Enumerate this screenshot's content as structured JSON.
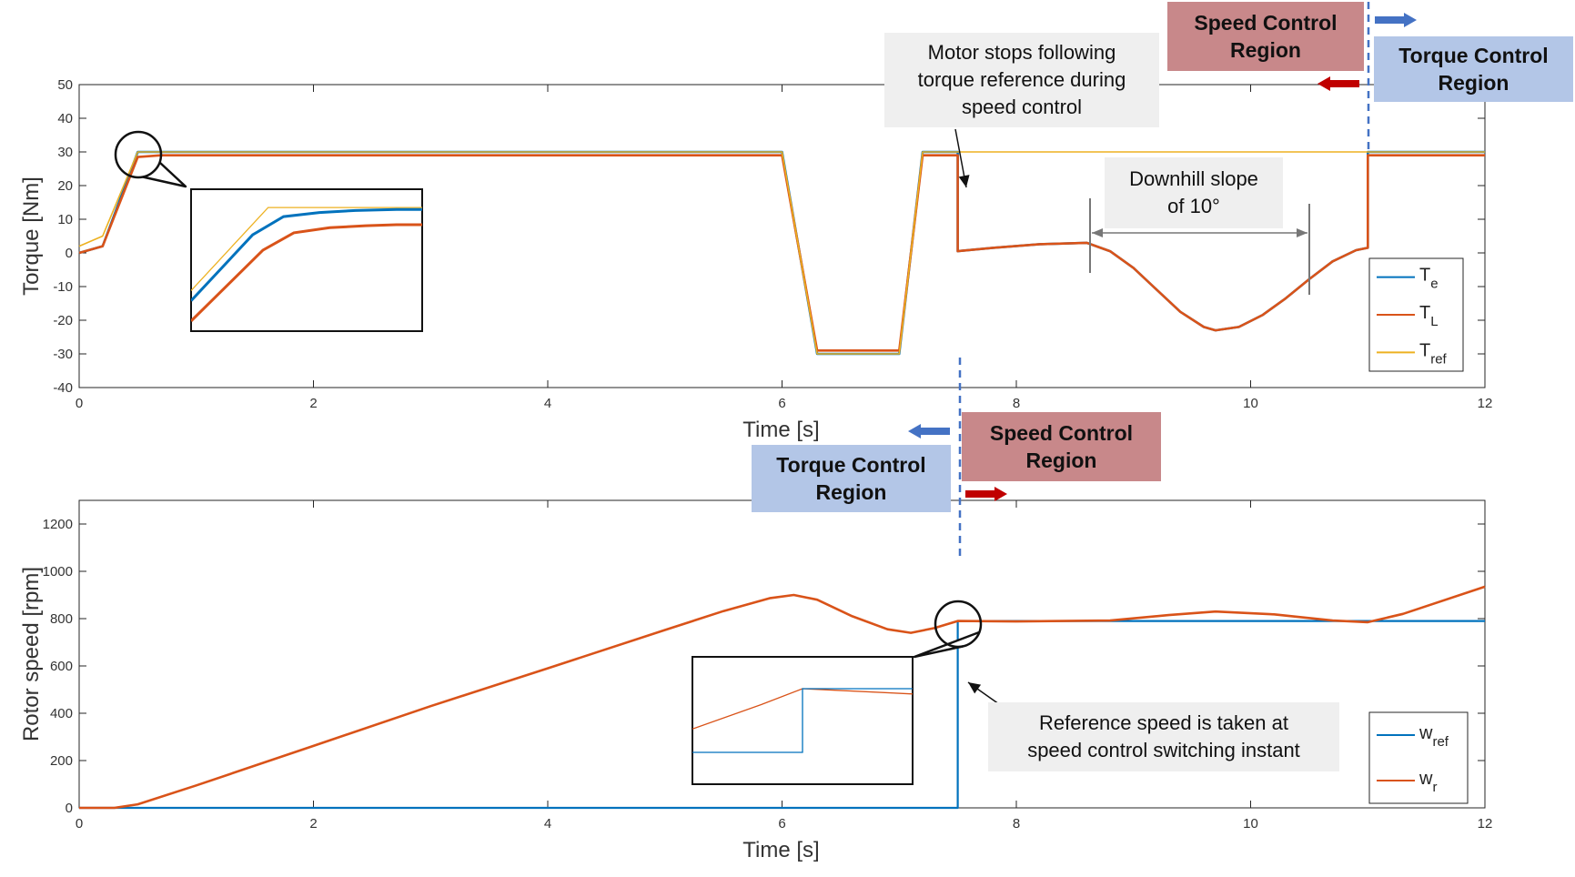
{
  "colors": {
    "te": "#0072BD",
    "tl": "#D95319",
    "tref": "#EDB120",
    "wref": "#0072BD",
    "wr": "#D95319",
    "speed_region": "#c8888a",
    "torque_region": "#b3c6e7",
    "note_bg": "#efefef",
    "switch_line": "#4472C4",
    "arrow_blue": "#4472C4",
    "arrow_red": "#C00000"
  },
  "annotations": {
    "top_speed_region": "Speed Control\nRegion",
    "top_torque_region": "Torque Control\nRegion",
    "motor_stops_note": "Motor stops following\ntorque reference during\nspeed control",
    "downhill_note": "Downhill slope\nof 10°",
    "bottom_speed_region": "Speed Control\nRegion",
    "bottom_torque_region": "Torque Control\nRegion",
    "reference_speed_note": "Reference speed is taken at\nspeed control switching instant"
  },
  "chart_data": [
    {
      "type": "line",
      "xlabel": "Time [s]",
      "ylabel": "Torque [Nm]",
      "xlim": [
        0,
        12
      ],
      "ylim": [
        -40,
        50
      ],
      "xticks": [
        0,
        2,
        4,
        6,
        8,
        10,
        12
      ],
      "yticks": [
        -40,
        -30,
        -20,
        -10,
        0,
        10,
        20,
        30,
        40,
        50
      ],
      "legend_position": "bottom-right",
      "series": [
        {
          "key": "te",
          "name": "T",
          "sub": "e",
          "x": [
            0,
            0.2,
            0.5,
            0.7,
            6.0,
            6.3,
            7.0,
            7.2,
            7.5,
            7.5,
            7.8,
            8.2,
            8.6,
            8.8,
            9.0,
            9.2,
            9.4,
            9.6,
            9.7,
            9.9,
            10.1,
            10.3,
            10.5,
            10.7,
            10.9,
            11.0,
            11.0,
            12.0
          ],
          "y": [
            0,
            2,
            30,
            30,
            30,
            -30,
            -30,
            30,
            30,
            0.5,
            1.5,
            2.6,
            3.0,
            0.5,
            -4.5,
            -11,
            -17.5,
            -22,
            -23,
            -22,
            -18.5,
            -13.5,
            -7.8,
            -2.5,
            0.8,
            1.5,
            30,
            30
          ]
        },
        {
          "key": "tl",
          "name": "T",
          "sub": "L",
          "x": [
            0,
            0.2,
            0.5,
            0.7,
            6.0,
            6.3,
            7.0,
            7.2,
            7.5,
            7.5,
            7.8,
            8.2,
            8.6,
            8.8,
            9.0,
            9.2,
            9.4,
            9.6,
            9.7,
            9.9,
            10.1,
            10.3,
            10.5,
            10.7,
            10.9,
            11.0,
            11.0,
            12.0
          ],
          "y": [
            0,
            2,
            28.5,
            29,
            29,
            -29,
            -29,
            29,
            29,
            0.5,
            1.5,
            2.6,
            3.0,
            0.5,
            -4.5,
            -11,
            -17.5,
            -22,
            -23,
            -22,
            -18.5,
            -13.5,
            -7.8,
            -2.5,
            0.8,
            1.5,
            29,
            29
          ]
        },
        {
          "key": "tref",
          "name": "T",
          "sub": "ref",
          "x": [
            0,
            0.2,
            0.5,
            6.0,
            6.3,
            7.0,
            7.2,
            12.0
          ],
          "y": [
            2,
            5,
            30,
            30,
            -30,
            -30,
            30,
            30
          ]
        }
      ],
      "inset": {
        "x": [
          0.3,
          0.75
        ],
        "series": [
          {
            "key": "tref",
            "x": [
              0.3,
              0.45,
              0.75
            ],
            "y": [
              22,
              30.2,
              30.2
            ]
          },
          {
            "key": "te",
            "x": [
              0.3,
              0.42,
              0.48,
              0.55,
              0.62,
              0.7,
              0.75
            ],
            "y": [
              21,
              27.5,
              29.3,
              29.7,
              29.9,
              30.0,
              30.0
            ]
          },
          {
            "key": "tl",
            "x": [
              0.3,
              0.44,
              0.5,
              0.57,
              0.64,
              0.7,
              0.75
            ],
            "y": [
              19,
              26,
              27.7,
              28.2,
              28.4,
              28.5,
              28.5
            ]
          }
        ]
      }
    },
    {
      "type": "line",
      "xlabel": "Time [s]",
      "ylabel": "Rotor speed [rpm]",
      "xlim": [
        0,
        12
      ],
      "ylim": [
        0,
        1300
      ],
      "xticks": [
        0,
        2,
        4,
        6,
        8,
        10,
        12
      ],
      "yticks": [
        0,
        200,
        400,
        600,
        800,
        1000,
        1200
      ],
      "legend_position": "bottom-right",
      "series": [
        {
          "key": "wref",
          "name": "w",
          "sub": "ref",
          "x": [
            0,
            7.5,
            7.5,
            12.0
          ],
          "y": [
            0,
            0,
            790,
            790
          ]
        },
        {
          "key": "wr",
          "name": "w",
          "sub": "r",
          "x": [
            0,
            0.3,
            0.5,
            1,
            2,
            3,
            4,
            5,
            5.5,
            5.9,
            6.1,
            6.3,
            6.6,
            6.9,
            7.1,
            7.3,
            7.5,
            8.0,
            8.8,
            9.3,
            9.7,
            10.2,
            10.7,
            11.0,
            11.3,
            12.0
          ],
          "y": [
            0,
            0,
            15,
            95,
            262,
            430,
            590,
            752,
            832,
            887,
            900,
            880,
            810,
            755,
            740,
            760,
            790,
            788,
            792,
            815,
            830,
            818,
            792,
            785,
            820,
            935
          ]
        }
      ],
      "inset": {
        "x": [
          7.1,
          7.9
        ],
        "series": [
          {
            "key": "wr",
            "x": [
              7.1,
              7.35,
              7.5,
              7.9
            ],
            "y": [
              752,
              775,
              790,
              785
            ]
          },
          {
            "key": "wref",
            "x": [
              7.1,
              7.5,
              7.5,
              7.9
            ],
            "y": [
              730,
              730,
              790,
              790
            ]
          }
        ]
      }
    }
  ]
}
